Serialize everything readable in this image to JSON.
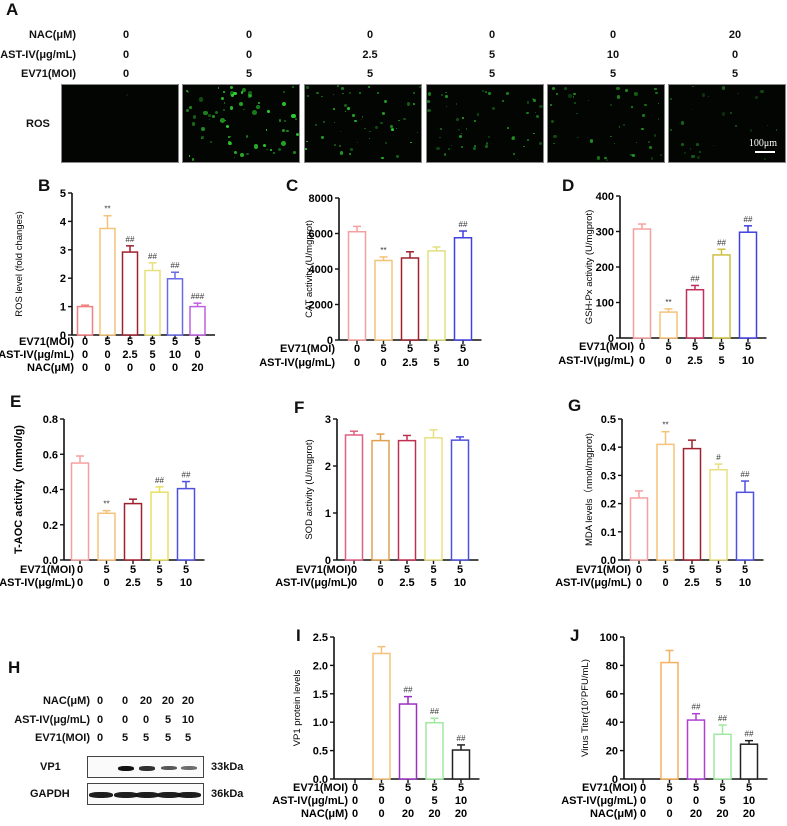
{
  "panelA": {
    "letter": "A",
    "rows": [
      {
        "label": "NAC(μM)",
        "values": [
          "0",
          "0",
          "0",
          "0",
          "0",
          "20"
        ]
      },
      {
        "label": "AST-IV(μg/mL)",
        "values": [
          "0",
          "0",
          "2.5",
          "5",
          "10",
          "0"
        ]
      },
      {
        "label": "EV71(MOI)",
        "values": [
          "0",
          "5",
          "5",
          "5",
          "5",
          "5"
        ]
      }
    ],
    "row_label": "ROS",
    "scale_bar": "100μm",
    "image_count": 6
  },
  "panelH": {
    "letter": "H",
    "rows": [
      {
        "label": "NAC(μM)",
        "values": [
          "0",
          "0",
          "20",
          "20",
          "20"
        ]
      },
      {
        "label": "AST-IV(μg/mL)",
        "values": [
          "0",
          "0",
          "0",
          "5",
          "10"
        ]
      },
      {
        "label": "EV71(MOI)",
        "values": [
          "0",
          "5",
          "5",
          "5",
          "5"
        ]
      }
    ],
    "blots": [
      {
        "name": "VP1",
        "size": "33kDa"
      },
      {
        "name": "GAPDH",
        "size": "36kDa"
      }
    ]
  },
  "chart_data": [
    {
      "id": "B",
      "type": "bar",
      "title": "",
      "ylabel": "ROS level (fold changes)",
      "ylim": [
        0,
        5
      ],
      "yticks": [
        "0",
        "1",
        "2",
        "3",
        "4",
        "5"
      ],
      "categories_rows": [
        {
          "label": "EV71(MOI)",
          "values": [
            "0",
            "5",
            "5",
            "5",
            "5",
            "5"
          ]
        },
        {
          "label": "AST-IV(μg/mL)",
          "values": [
            "0",
            "0",
            "2.5",
            "5",
            "10",
            "0"
          ]
        },
        {
          "label": "NAC(μM)",
          "values": [
            "0",
            "0",
            "0",
            "0",
            "0",
            "20"
          ]
        }
      ],
      "values": [
        1.0,
        3.75,
        2.92,
        2.27,
        1.98,
        1.0
      ],
      "errors": [
        0.05,
        0.45,
        0.22,
        0.27,
        0.23,
        0.12
      ],
      "annotations": [
        "",
        "**",
        "##",
        "##",
        "##",
        "###"
      ],
      "colors": [
        "#f08080",
        "#f5c27a",
        "#a0202e",
        "#e8e07a",
        "#6a6ae8",
        "#c060e0"
      ]
    },
    {
      "id": "C",
      "type": "bar",
      "title": "",
      "ylabel": "CAT activity (U/mgprot)",
      "ylim": [
        0,
        8000
      ],
      "yticks": [
        "0",
        "2000",
        "4000",
        "6000",
        "8000"
      ],
      "categories_rows": [
        {
          "label": "EV71(MOI)",
          "values": [
            "0",
            "5",
            "5",
            "5",
            "5"
          ]
        },
        {
          "label": "AST-IV(μg/mL)",
          "values": [
            "0",
            "0",
            "2.5",
            "5",
            "10"
          ]
        }
      ],
      "values": [
        6100,
        4480,
        4620,
        5020,
        5760
      ],
      "errors": [
        300,
        200,
        350,
        220,
        380
      ],
      "annotations": [
        "",
        "**",
        "",
        "",
        "##"
      ],
      "colors": [
        "#f5a0a0",
        "#f5c27a",
        "#a0202e",
        "#e0e080",
        "#4040e0"
      ]
    },
    {
      "id": "D",
      "type": "bar",
      "title": "",
      "ylabel": "GSH-Px activity (U/mgprot)",
      "ylim": [
        0,
        400
      ],
      "yticks": [
        "0",
        "100",
        "200",
        "300",
        "400"
      ],
      "categories_rows": [
        {
          "label": "EV71(MOI)",
          "values": [
            "0",
            "5",
            "5",
            "5",
            "5"
          ]
        },
        {
          "label": "AST-IV(μg/mL)",
          "values": [
            "0",
            "0",
            "2.5",
            "5",
            "10"
          ]
        }
      ],
      "values": [
        307,
        73,
        136,
        234,
        298
      ],
      "errors": [
        14,
        9,
        12,
        16,
        18
      ],
      "annotations": [
        "",
        "**",
        "##",
        "##",
        "##"
      ],
      "colors": [
        "#f5a0a0",
        "#f5c27a",
        "#c0305a",
        "#d0c040",
        "#4040e0"
      ]
    },
    {
      "id": "E",
      "type": "bar",
      "title": "",
      "ylabel": "T-AOC activity（mmol/g)",
      "ylim": [
        0,
        0.8
      ],
      "yticks": [
        "0.0",
        "0.2",
        "0.4",
        "0.6",
        "0.8"
      ],
      "categories_rows": [
        {
          "label": "EV71(MOI)",
          "values": [
            "0",
            "5",
            "5",
            "5",
            "5"
          ]
        },
        {
          "label": "AST-IV(μg/mL)",
          "values": [
            "0",
            "0",
            "2.5",
            "5",
            "10"
          ]
        }
      ],
      "values": [
        0.55,
        0.265,
        0.32,
        0.385,
        0.405
      ],
      "errors": [
        0.04,
        0.015,
        0.025,
        0.03,
        0.04
      ],
      "annotations": [
        "",
        "**",
        "",
        "##",
        "##"
      ],
      "colors": [
        "#f5a0a0",
        "#f5c27a",
        "#a0202e",
        "#e8e060",
        "#5050e0"
      ]
    },
    {
      "id": "F",
      "type": "bar",
      "title": "",
      "ylabel": "SOD activity (U/mgprot)",
      "ylim": [
        0,
        3
      ],
      "yticks": [
        "0",
        "1",
        "2",
        "3"
      ],
      "categories_rows": [
        {
          "label": "EV71(MOI)",
          "values": [
            "0",
            "5",
            "5",
            "5",
            "5"
          ]
        },
        {
          "label": "AST-IV(μg/mL)",
          "values": [
            "0",
            "0",
            "2.5",
            "5",
            "10"
          ]
        }
      ],
      "values": [
        2.66,
        2.54,
        2.54,
        2.6,
        2.55
      ],
      "errors": [
        0.08,
        0.14,
        0.11,
        0.17,
        0.07
      ],
      "annotations": [
        "",
        "",
        "",
        "",
        ""
      ],
      "colors": [
        "#e06080",
        "#e0a050",
        "#c03050",
        "#e8e080",
        "#5050e0"
      ]
    },
    {
      "id": "G",
      "type": "bar",
      "title": "",
      "ylabel": "MDA levels（nmol/mgprot)",
      "ylim": [
        0,
        0.5
      ],
      "yticks": [
        "0.0",
        "0.1",
        "0.2",
        "0.3",
        "0.4",
        "0.5"
      ],
      "categories_rows": [
        {
          "label": "EV71(MOI)",
          "values": [
            "0",
            "5",
            "5",
            "5",
            "5"
          ]
        },
        {
          "label": "AST-IV(μg/mL)",
          "values": [
            "0",
            "0",
            "2.5",
            "5",
            "10"
          ]
        }
      ],
      "values": [
        0.22,
        0.41,
        0.395,
        0.32,
        0.24
      ],
      "errors": [
        0.025,
        0.045,
        0.03,
        0.02,
        0.04
      ],
      "annotations": [
        "",
        "**",
        "",
        "#",
        "##"
      ],
      "colors": [
        "#f5a0a0",
        "#f5c27a",
        "#a0202e",
        "#e8e080",
        "#5050e0"
      ]
    },
    {
      "id": "I",
      "type": "bar",
      "title": "",
      "ylabel": "VP1 protein levels",
      "ylim": [
        0,
        2.5
      ],
      "yticks": [
        "0.0",
        "0.5",
        "1.0",
        "1.5",
        "2.0",
        "2.5"
      ],
      "categories_rows": [
        {
          "label": "EV71(MOI)",
          "values": [
            "0",
            "5",
            "5",
            "5",
            "5"
          ]
        },
        {
          "label": "AST-IV(μg/mL)",
          "values": [
            "0",
            "0",
            "0",
            "5",
            "10"
          ]
        },
        {
          "label": "NAC(μM)",
          "values": [
            "0",
            "0",
            "20",
            "20",
            "20"
          ]
        }
      ],
      "values": [
        0,
        2.21,
        1.32,
        0.99,
        0.51
      ],
      "errors": [
        0,
        0.12,
        0.13,
        0.08,
        0.09
      ],
      "annotations": [
        "",
        "",
        "##",
        "##",
        "##"
      ],
      "colors": [
        "#f5a0a0",
        "#f5c27a",
        "#9a30c0",
        "#a0e8a0",
        "#222222"
      ]
    },
    {
      "id": "J",
      "type": "bar",
      "title": "",
      "ylabel": "Virus Titer(10⁷PFU/mL)",
      "ylim": [
        0,
        100
      ],
      "yticks": [
        "0",
        "20",
        "40",
        "60",
        "80",
        "100"
      ],
      "categories_rows": [
        {
          "label": "EV71(MOI)",
          "values": [
            "0",
            "5",
            "5",
            "5",
            "5"
          ]
        },
        {
          "label": "AST-IV(μg/mL)",
          "values": [
            "0",
            "0",
            "0",
            "5",
            "10"
          ]
        },
        {
          "label": "NAC(μM)",
          "values": [
            "0",
            "0",
            "20",
            "20",
            "20"
          ]
        }
      ],
      "values": [
        0,
        82,
        41.5,
        31.5,
        24.5
      ],
      "errors": [
        0,
        8.5,
        4.5,
        6.5,
        2.5
      ],
      "annotations": [
        "",
        "",
        "##",
        "##",
        "##"
      ],
      "colors": [
        "#f5a0a0",
        "#f5b060",
        "#b040d0",
        "#a0e8a0",
        "#222222"
      ]
    }
  ]
}
